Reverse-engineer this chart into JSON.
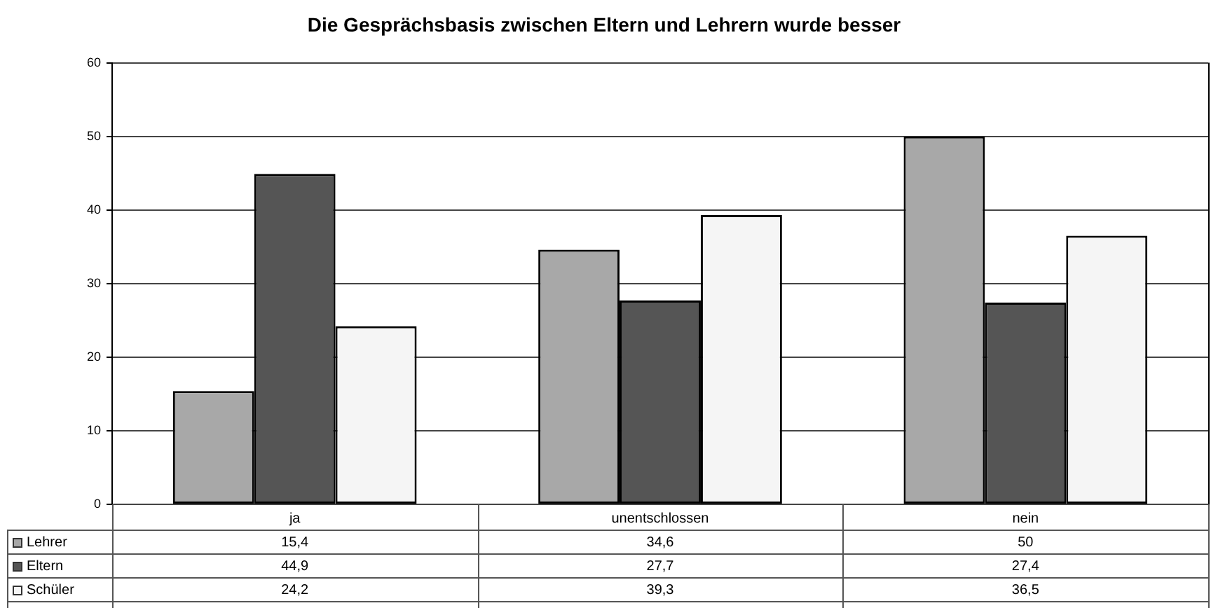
{
  "chart_data": {
    "type": "bar",
    "title": "Die Gesprächsbasis zwischen Eltern und Lehrern wurde besser",
    "categories": [
      "ja",
      "unentschlossen",
      "nein"
    ],
    "series": [
      {
        "name": "Lehrer",
        "color": "#a8a8a8",
        "values": [
          15.4,
          34.6,
          50
        ],
        "value_labels": [
          "15,4",
          "34,6",
          "50"
        ]
      },
      {
        "name": "Eltern",
        "color": "#555555",
        "values": [
          44.9,
          27.7,
          27.4
        ],
        "value_labels": [
          "44,9",
          "27,7",
          "27,4"
        ]
      },
      {
        "name": "Schüler",
        "color": "#f5f5f5",
        "values": [
          24.2,
          39.3,
          36.5
        ],
        "value_labels": [
          "24,2",
          "39,3",
          "36,5"
        ]
      }
    ],
    "ylim": [
      0,
      60
    ],
    "yticks": [
      0,
      10,
      20,
      30,
      40,
      50,
      60
    ],
    "grid": "y",
    "legend": "bottom left"
  }
}
